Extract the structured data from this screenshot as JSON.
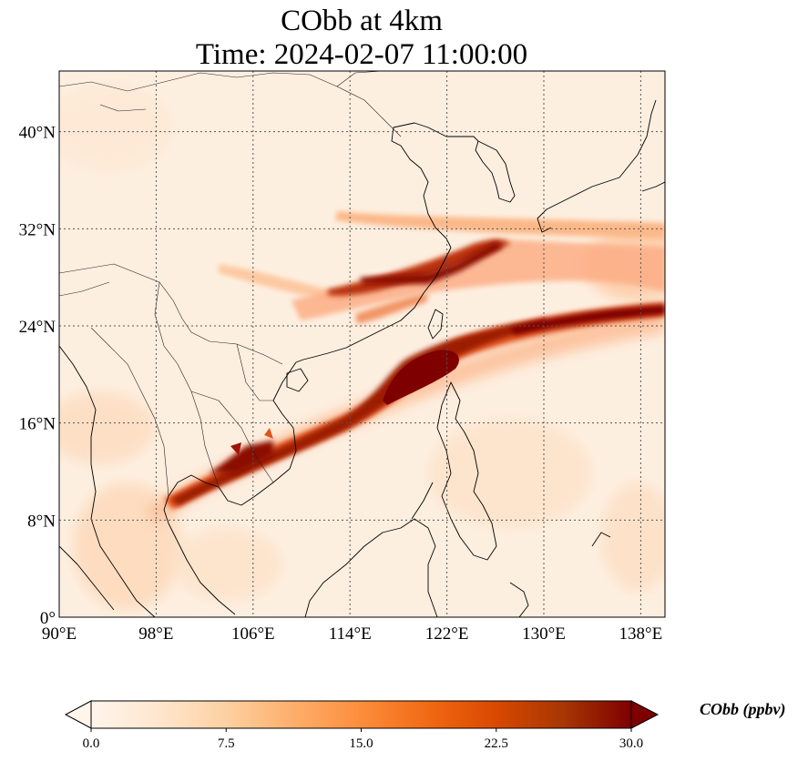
{
  "title_line1": "CObb at 4km",
  "title_line2": "Time: 2024-02-07 11:00:00",
  "map": {
    "lon_range": [
      90,
      140
    ],
    "lat_range": [
      0,
      45
    ],
    "lon_ticks": [
      {
        "value": 90,
        "label": "90°E"
      },
      {
        "value": 98,
        "label": "98°E"
      },
      {
        "value": 106,
        "label": "106°E"
      },
      {
        "value": 114,
        "label": "114°E"
      },
      {
        "value": 122,
        "label": "122°E"
      },
      {
        "value": 130,
        "label": "130°E"
      },
      {
        "value": 138,
        "label": "138°E"
      }
    ],
    "lat_ticks": [
      {
        "value": 0,
        "label": "0°"
      },
      {
        "value": 8,
        "label": "8°N"
      },
      {
        "value": 16,
        "label": "16°N"
      },
      {
        "value": 24,
        "label": "24°N"
      },
      {
        "value": 32,
        "label": "32°N"
      },
      {
        "value": 40,
        "label": "40°N"
      }
    ],
    "gridlines": true
  },
  "colorbar": {
    "label": "CObb (ppbv)",
    "range": [
      0,
      30
    ],
    "extend": "both",
    "ticks": [
      {
        "value": 0,
        "label": "0.0"
      },
      {
        "value": 7.5,
        "label": "7.5"
      },
      {
        "value": 15,
        "label": "15.0"
      },
      {
        "value": 22.5,
        "label": "22.5"
      },
      {
        "value": 30,
        "label": "30.0"
      }
    ],
    "colormap": [
      "#fff5eb",
      "#fee6ce",
      "#fdd0a2",
      "#fdae6b",
      "#fd8d3c",
      "#f16913",
      "#d94801",
      "#a63603",
      "#7f0000"
    ]
  }
}
